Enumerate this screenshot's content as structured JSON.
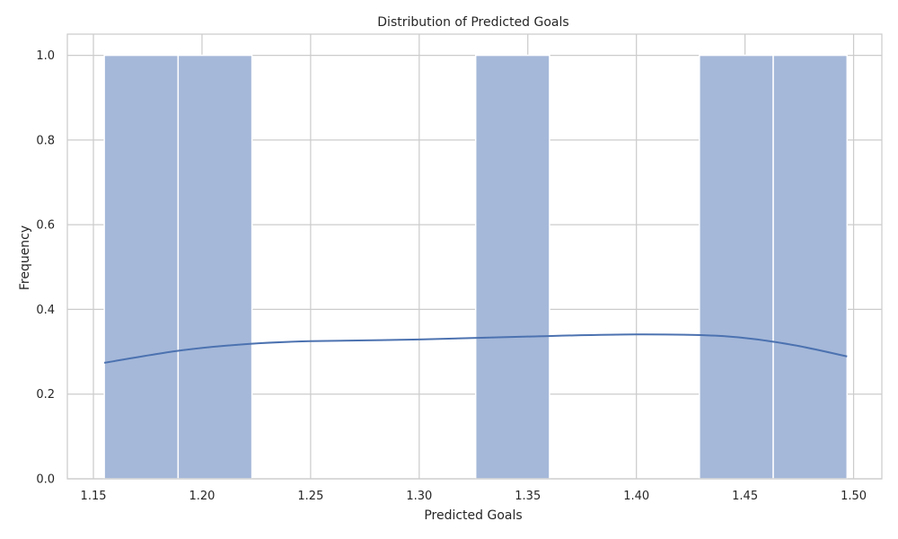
{
  "chart_data": {
    "type": "bar",
    "subtype": "histogram-with-kde",
    "title": "Distribution of Predicted Goals",
    "xlabel": "Predicted Goals",
    "ylabel": "Frequency",
    "xlim": [
      1.138,
      1.513
    ],
    "ylim": [
      0,
      1.05
    ],
    "x_ticks": [
      "1.15",
      "1.20",
      "1.25",
      "1.30",
      "1.35",
      "1.40",
      "1.45",
      "1.50"
    ],
    "y_ticks": [
      "0.0",
      "0.2",
      "0.4",
      "0.6",
      "0.8",
      "1.0"
    ],
    "x_tick_values": [
      1.15,
      1.2,
      1.25,
      1.3,
      1.35,
      1.4,
      1.45,
      1.5
    ],
    "y_tick_values": [
      0.0,
      0.2,
      0.4,
      0.6,
      0.8,
      1.0
    ],
    "bins": [
      {
        "x0": 1.155,
        "x1": 1.189,
        "count": 1
      },
      {
        "x0": 1.189,
        "x1": 1.223,
        "count": 1
      },
      {
        "x0": 1.223,
        "x1": 1.258,
        "count": 0
      },
      {
        "x0": 1.258,
        "x1": 1.292,
        "count": 0
      },
      {
        "x0": 1.292,
        "x1": 1.326,
        "count": 0
      },
      {
        "x0": 1.326,
        "x1": 1.36,
        "count": 1
      },
      {
        "x0": 1.36,
        "x1": 1.395,
        "count": 0
      },
      {
        "x0": 1.395,
        "x1": 1.429,
        "count": 0
      },
      {
        "x0": 1.429,
        "x1": 1.463,
        "count": 1
      },
      {
        "x0": 1.463,
        "x1": 1.497,
        "count": 1
      }
    ],
    "kde": {
      "x": [
        1.155,
        1.19,
        1.22,
        1.25,
        1.3,
        1.35,
        1.4,
        1.44,
        1.47,
        1.497
      ],
      "y": [
        0.274,
        0.303,
        0.318,
        0.325,
        0.329,
        0.336,
        0.341,
        0.337,
        0.318,
        0.289
      ]
    },
    "grid": true,
    "bar_color": "#a5b8d9",
    "line_color": "#4c72b0",
    "grid_color": "#cccccc",
    "spine_color": "#cccccc"
  }
}
